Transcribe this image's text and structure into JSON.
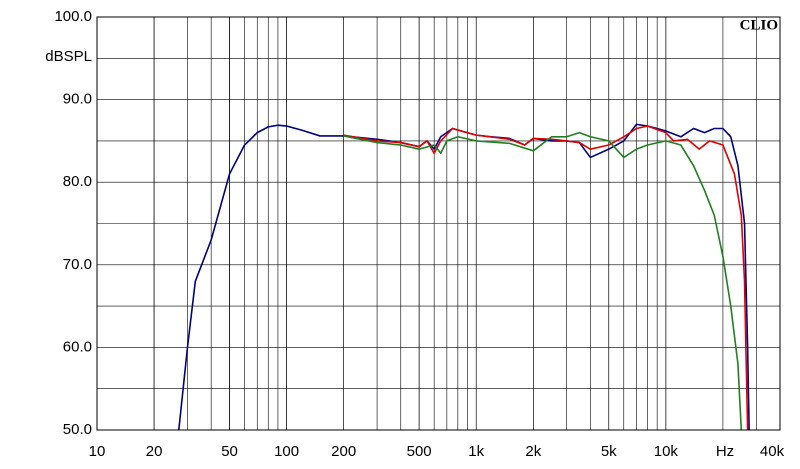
{
  "chart_data": {
    "type": "line",
    "brand": "CLIO",
    "y_label": "dBSPL",
    "x_label": "Hz",
    "log_x": true,
    "grid": true,
    "xlim": [
      10,
      40000
    ],
    "ylim": [
      50,
      100
    ],
    "xticks": [
      10,
      20,
      50,
      100,
      200,
      500,
      {
        "value": 1000,
        "label": "1k"
      },
      {
        "value": 2000,
        "label": "2k"
      },
      {
        "value": 5000,
        "label": "5k"
      },
      {
        "value": 10000,
        "label": "10k"
      },
      {
        "value": 40000,
        "label": "40k"
      }
    ],
    "yticks": [
      {
        "value": 50,
        "label": "50.0"
      },
      {
        "value": 60,
        "label": "60.0"
      },
      {
        "value": 70,
        "label": "70.0"
      },
      {
        "value": 80,
        "label": "80.0"
      },
      {
        "value": 90,
        "label": "90.0"
      },
      {
        "value": 100,
        "label": "100.0"
      }
    ],
    "series": [
      {
        "color": "#000080",
        "x": [
          27,
          30,
          33,
          40,
          50,
          60,
          70,
          80,
          90,
          100,
          120,
          150,
          200,
          300,
          400,
          500,
          550,
          600,
          650,
          750,
          800,
          1000,
          1200,
          1500,
          1800,
          2000,
          2500,
          3000,
          3500,
          4000,
          5000,
          6000,
          7000,
          8000,
          9000,
          10000,
          12000,
          14000,
          16000,
          18000,
          20000,
          22000,
          24000,
          26000,
          27000,
          27500
        ],
        "y": [
          50,
          60,
          68,
          73,
          81,
          84.5,
          86,
          86.7,
          86.9,
          86.8,
          86.3,
          85.6,
          85.6,
          85.2,
          84.8,
          84.3,
          85,
          84,
          85.5,
          86.5,
          86.3,
          85.7,
          85.5,
          85.3,
          84.5,
          85.3,
          85,
          85,
          84.8,
          83,
          84,
          85,
          87,
          86.8,
          86.5,
          86.2,
          85.5,
          86.5,
          86,
          86.5,
          86.5,
          85.5,
          82,
          75,
          60,
          50
        ]
      },
      {
        "color": "#e00000",
        "x": [
          200,
          300,
          400,
          500,
          550,
          600,
          650,
          750,
          1000,
          1500,
          1800,
          2000,
          2500,
          3000,
          3500,
          4000,
          5000,
          6000,
          7000,
          8000,
          10000,
          11000,
          13000,
          15000,
          17000,
          20000,
          23000,
          25000,
          26000,
          27000
        ],
        "y": [
          85.7,
          85,
          84.8,
          84.3,
          85,
          83.5,
          85,
          86.5,
          85.7,
          85.2,
          84.5,
          85.3,
          85.2,
          85,
          84.8,
          84,
          84.5,
          85.5,
          86.5,
          86.8,
          86,
          85,
          85.2,
          84,
          85,
          84.5,
          81,
          76,
          68,
          50
        ]
      },
      {
        "color": "#208020",
        "x": [
          200,
          300,
          400,
          500,
          600,
          650,
          700,
          800,
          1000,
          1500,
          2000,
          2500,
          3000,
          3500,
          4000,
          5000,
          6000,
          7000,
          8000,
          10000,
          12000,
          14000,
          16000,
          18000,
          20000,
          22000,
          24000,
          25000
        ],
        "y": [
          85.6,
          84.8,
          84.5,
          84,
          84.5,
          83.5,
          85,
          85.5,
          85,
          84.7,
          83.8,
          85.5,
          85.5,
          86,
          85.5,
          85,
          83,
          84,
          84.5,
          85,
          84.5,
          82,
          79,
          76,
          71,
          65,
          58,
          50
        ]
      }
    ]
  }
}
